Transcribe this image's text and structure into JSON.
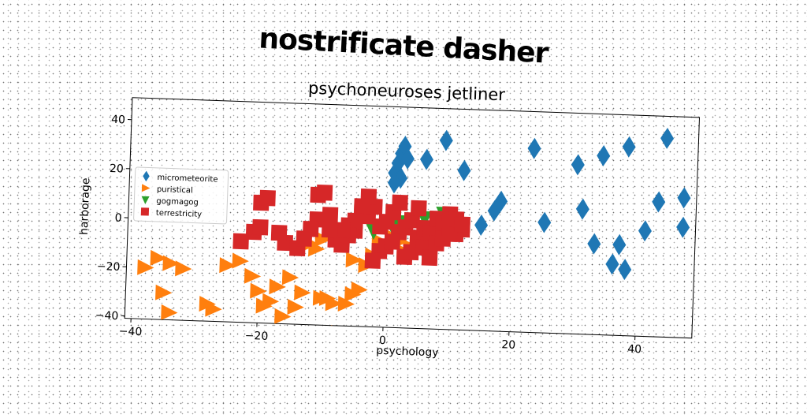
{
  "figure_title": "nostrificate dasher",
  "chart_data": {
    "type": "scatter",
    "title": "psychoneuroses jetliner",
    "xlabel": "psychology",
    "ylabel": "harborage",
    "xlim": [
      -41,
      49
    ],
    "ylim": [
      -41,
      49
    ],
    "xticks": [
      -40,
      -20,
      0,
      20,
      40
    ],
    "yticks": [
      -40,
      -20,
      0,
      20,
      40
    ],
    "xtick_labels": [
      "−40",
      "−20",
      "0",
      "20",
      "40"
    ],
    "ytick_labels": [
      "−40",
      "−20",
      "0",
      "20",
      "40"
    ],
    "grid": false,
    "legend_position": "center-left",
    "series": [
      {
        "name": "micrometeorite",
        "marker": "diamond",
        "color": "#1f77b4",
        "points": [
          [
            1,
            22
          ],
          [
            1.5,
            26
          ],
          [
            2,
            30
          ],
          [
            2.5,
            33
          ],
          [
            3,
            28
          ],
          [
            2,
            20
          ],
          [
            1,
            18
          ],
          [
            6,
            28
          ],
          [
            9,
            36
          ],
          [
            12,
            24
          ],
          [
            18,
            12
          ],
          [
            17,
            8
          ],
          [
            15,
            2
          ],
          [
            23,
            34
          ],
          [
            25,
            4
          ],
          [
            30,
            28
          ],
          [
            31,
            10
          ],
          [
            33,
            -4
          ],
          [
            34,
            32
          ],
          [
            38,
            36
          ],
          [
            36,
            -12
          ],
          [
            37,
            -4
          ],
          [
            38,
            -14
          ],
          [
            41,
            2
          ],
          [
            43,
            14
          ],
          [
            44,
            40
          ],
          [
            47,
            16
          ],
          [
            47,
            4
          ]
        ]
      },
      {
        "name": "puristical",
        "marker": "triangle-right",
        "color": "#ff7f0e",
        "points": [
          [
            -38,
            -20
          ],
          [
            -36,
            -16
          ],
          [
            -34,
            -18
          ],
          [
            -35,
            -30
          ],
          [
            -34,
            -38
          ],
          [
            -32,
            -20
          ],
          [
            -28,
            -34
          ],
          [
            -27,
            -36
          ],
          [
            -25,
            -18
          ],
          [
            -23,
            -16
          ],
          [
            -21,
            -22
          ],
          [
            -20,
            -28
          ],
          [
            -19,
            -34
          ],
          [
            -18,
            -32
          ],
          [
            -17,
            -26
          ],
          [
            -16,
            -38
          ],
          [
            -15,
            -22
          ],
          [
            -14,
            -34
          ],
          [
            -13,
            -28
          ],
          [
            -11,
            -10
          ],
          [
            -10,
            -30
          ],
          [
            -9,
            -30
          ],
          [
            -8,
            -32
          ],
          [
            -7,
            -44
          ],
          [
            -6,
            -32
          ],
          [
            -5,
            -28
          ],
          [
            -4,
            -26
          ],
          [
            -5,
            -14
          ],
          [
            -3,
            -16
          ],
          [
            -2,
            -12
          ],
          [
            -1,
            -6
          ],
          [
            0,
            -8
          ],
          [
            1,
            -4
          ],
          [
            2,
            -6
          ],
          [
            3,
            -10
          ],
          [
            4,
            -8
          ],
          [
            5,
            -6
          ],
          [
            -10,
            -6
          ],
          [
            -12,
            -8
          ]
        ]
      },
      {
        "name": "gogmagog",
        "marker": "triangle-down",
        "color": "#2ca02c",
        "points": [
          [
            -2,
            -2
          ],
          [
            3,
            2
          ],
          [
            6,
            4
          ],
          [
            9,
            6
          ],
          [
            1,
            0
          ]
        ]
      },
      {
        "name": "terrestricity",
        "marker": "square",
        "color": "#d62728",
        "points": [
          [
            -20,
            8
          ],
          [
            -19,
            10
          ],
          [
            -21,
            -4
          ],
          [
            -20,
            -2
          ],
          [
            -16,
            -8
          ],
          [
            -14,
            -10
          ],
          [
            -13,
            -6
          ],
          [
            -11,
            2
          ],
          [
            -9,
            4
          ],
          [
            -11,
            12
          ],
          [
            -10,
            13
          ],
          [
            -8,
            -6
          ],
          [
            -7,
            -8
          ],
          [
            -6,
            0
          ],
          [
            -5,
            -2
          ],
          [
            -4,
            6
          ],
          [
            -3,
            4
          ],
          [
            -2,
            8
          ],
          [
            -1,
            0
          ],
          [
            0,
            2
          ],
          [
            1,
            6
          ],
          [
            2,
            -2
          ],
          [
            3,
            0
          ],
          [
            4,
            3
          ],
          [
            5,
            -4
          ],
          [
            6,
            0
          ],
          [
            7,
            -2
          ],
          [
            8,
            4
          ],
          [
            9,
            2
          ],
          [
            10,
            6
          ],
          [
            11,
            -2
          ],
          [
            12,
            0
          ],
          [
            -1,
            -10
          ],
          [
            0,
            -8
          ],
          [
            1,
            -6
          ],
          [
            3,
            -12
          ],
          [
            4,
            -10
          ],
          [
            6,
            -8
          ],
          [
            7,
            -12
          ],
          [
            8,
            -6
          ],
          [
            9,
            -4
          ],
          [
            10,
            -2
          ],
          [
            11,
            4
          ],
          [
            12,
            2
          ],
          [
            -3,
            12
          ],
          [
            -4,
            8
          ],
          [
            -5,
            2
          ],
          [
            -6,
            -4
          ],
          [
            -7,
            -2
          ],
          [
            -2,
            -14
          ],
          [
            2,
            10
          ],
          [
            5,
            8
          ],
          [
            -9,
            -2
          ],
          [
            -12,
            -2
          ],
          [
            -17,
            -4
          ],
          [
            -23,
            -8
          ]
        ]
      }
    ]
  }
}
